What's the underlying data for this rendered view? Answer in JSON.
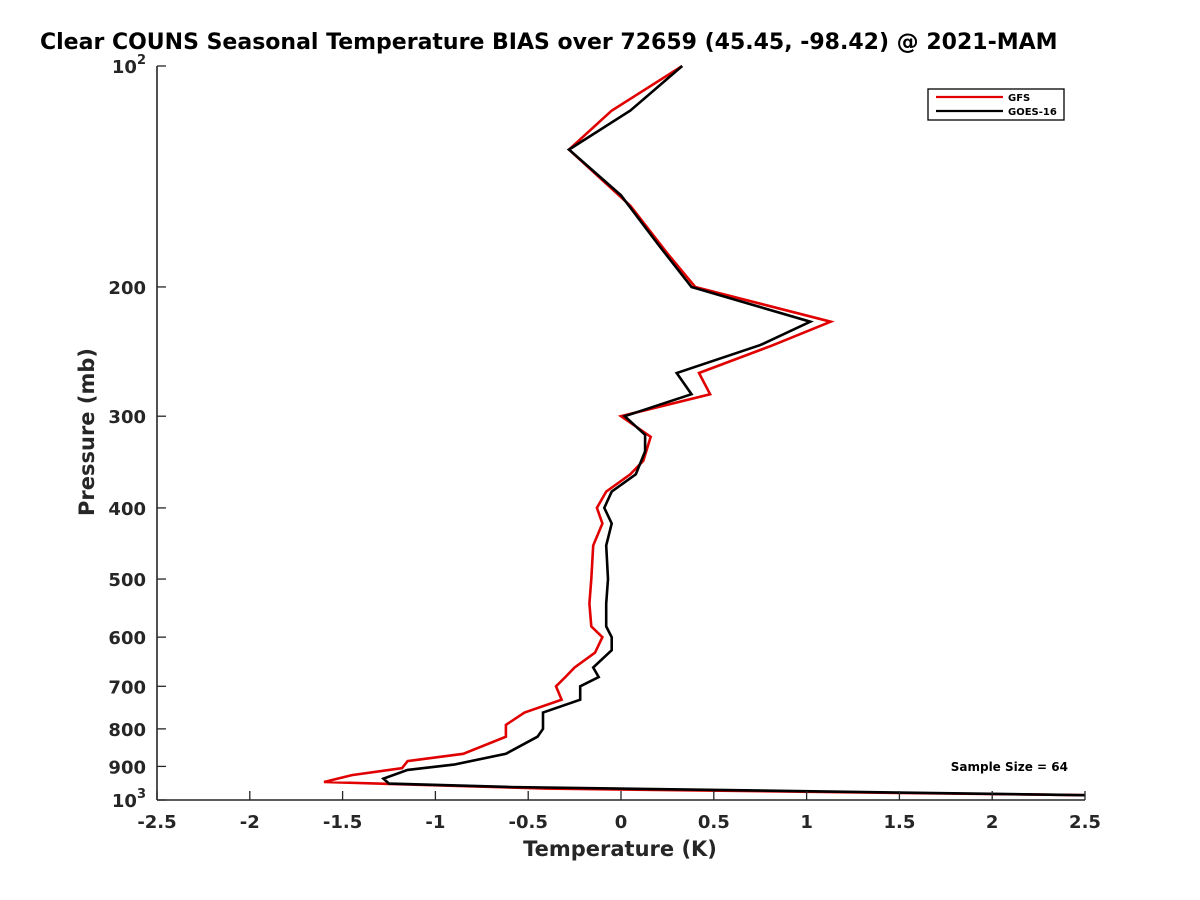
{
  "chart_data": {
    "type": "line",
    "title": "Clear COUNS Seasonal Temperature BIAS over 72659 (45.45, -98.42) @ 2021-MAM",
    "xlabel": "Temperature (K)",
    "ylabel": "Pressure (mb)",
    "xlim": [
      -2.5,
      2.5
    ],
    "ylim": [
      100,
      1000
    ],
    "yscale": "log",
    "y_reversed": true,
    "grid": false,
    "legend_position": "top-right",
    "x_ticks": [
      -2.5,
      -2,
      -1.5,
      -1,
      -0.5,
      0,
      0.5,
      1,
      1.5,
      2,
      2.5
    ],
    "x_tick_labels": [
      "-2.5",
      "-2",
      "-1.5",
      "-1",
      "-0.5",
      "0",
      "0.5",
      "1",
      "1.5",
      "2",
      "2.5"
    ],
    "y_ticks": [
      100,
      200,
      300,
      400,
      500,
      600,
      700,
      800,
      900,
      1000
    ],
    "y_tick_labels": [
      {
        "base": "10",
        "sup": "2"
      },
      {
        "base": "200",
        "sup": ""
      },
      {
        "base": "300",
        "sup": ""
      },
      {
        "base": "400",
        "sup": ""
      },
      {
        "base": "500",
        "sup": ""
      },
      {
        "base": "600",
        "sup": ""
      },
      {
        "base": "700",
        "sup": ""
      },
      {
        "base": "800",
        "sup": ""
      },
      {
        "base": "900",
        "sup": ""
      },
      {
        "base": "10",
        "sup": "3"
      }
    ],
    "annotation": "Sample Size = 64",
    "series": [
      {
        "name": "GFS",
        "color": "#e00000",
        "points": [
          [
            0.33,
            100
          ],
          [
            -0.05,
            115
          ],
          [
            -0.28,
            130
          ],
          [
            0.05,
            155
          ],
          [
            0.25,
            180
          ],
          [
            0.4,
            200
          ],
          [
            1.13,
            223
          ],
          [
            0.82,
            240
          ],
          [
            0.42,
            262
          ],
          [
            0.48,
            280
          ],
          [
            0.0,
            300
          ],
          [
            0.16,
            320
          ],
          [
            0.12,
            345
          ],
          [
            0.05,
            360
          ],
          [
            -0.08,
            380
          ],
          [
            -0.13,
            400
          ],
          [
            -0.1,
            420
          ],
          [
            -0.15,
            450
          ],
          [
            -0.16,
            500
          ],
          [
            -0.17,
            540
          ],
          [
            -0.16,
            580
          ],
          [
            -0.1,
            600
          ],
          [
            -0.14,
            630
          ],
          [
            -0.25,
            660
          ],
          [
            -0.3,
            680
          ],
          [
            -0.35,
            700
          ],
          [
            -0.32,
            730
          ],
          [
            -0.52,
            760
          ],
          [
            -0.62,
            790
          ],
          [
            -0.62,
            820
          ],
          [
            -0.85,
            865
          ],
          [
            -1.15,
            885
          ],
          [
            -1.18,
            905
          ],
          [
            -1.45,
            925
          ],
          [
            -1.6,
            945
          ],
          [
            -0.4,
            965
          ],
          [
            2.5,
            985
          ]
        ]
      },
      {
        "name": "GOES-16",
        "color": "#000000",
        "points": [
          [
            0.33,
            100
          ],
          [
            0.05,
            115
          ],
          [
            -0.28,
            130
          ],
          [
            0.0,
            150
          ],
          [
            0.2,
            175
          ],
          [
            0.38,
            200
          ],
          [
            1.02,
            223
          ],
          [
            0.75,
            240
          ],
          [
            0.3,
            262
          ],
          [
            0.38,
            280
          ],
          [
            0.02,
            300
          ],
          [
            0.13,
            318
          ],
          [
            0.13,
            335
          ],
          [
            0.08,
            360
          ],
          [
            -0.05,
            380
          ],
          [
            -0.09,
            400
          ],
          [
            -0.05,
            420
          ],
          [
            -0.08,
            450
          ],
          [
            -0.07,
            500
          ],
          [
            -0.08,
            540
          ],
          [
            -0.08,
            580
          ],
          [
            -0.05,
            600
          ],
          [
            -0.05,
            625
          ],
          [
            -0.15,
            660
          ],
          [
            -0.12,
            680
          ],
          [
            -0.22,
            700
          ],
          [
            -0.22,
            730
          ],
          [
            -0.42,
            760
          ],
          [
            -0.42,
            800
          ],
          [
            -0.45,
            820
          ],
          [
            -0.62,
            865
          ],
          [
            -0.9,
            895
          ],
          [
            -1.15,
            910
          ],
          [
            -1.28,
            935
          ],
          [
            -1.25,
            950
          ],
          [
            -0.6,
            960
          ],
          [
            2.5,
            985
          ]
        ]
      }
    ]
  }
}
